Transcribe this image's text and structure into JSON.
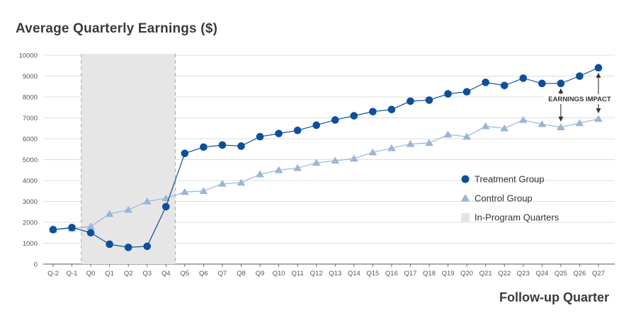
{
  "chart_data": {
    "type": "line",
    "title": "Average Quarterly Earnings ($)",
    "xlabel": "Follow-up Quarter",
    "ylabel": "",
    "ylim": [
      0,
      10000
    ],
    "yticks": [
      0,
      1000,
      2000,
      3000,
      4000,
      5000,
      6000,
      7000,
      8000,
      9000,
      10000
    ],
    "categories": [
      "Q-2",
      "Q-1",
      "Q0",
      "Q1",
      "Q2",
      "Q3",
      "Q4",
      "Q5",
      "Q6",
      "Q7",
      "Q8",
      "Q9",
      "Q10",
      "Q11",
      "Q12",
      "Q13",
      "Q14",
      "Q15",
      "Q16",
      "Q17",
      "Q18",
      "Q19",
      "Q20",
      "Q21",
      "Q22",
      "Q23",
      "Q24",
      "Q25",
      "Q26",
      "Q27"
    ],
    "series": [
      {
        "name": "Treatment Group",
        "marker": "circle",
        "color": "#0d4f9a",
        "values": [
          1650,
          1750,
          1500,
          950,
          800,
          850,
          2750,
          5300,
          5600,
          5700,
          5650,
          6100,
          6250,
          6400,
          6650,
          6900,
          7100,
          7300,
          7400,
          7800,
          7850,
          8150,
          8250,
          8700,
          8550,
          8900,
          8650,
          8650,
          9000,
          9400
        ]
      },
      {
        "name": "Control Group",
        "marker": "triangle",
        "color": "#9bb6d6",
        "values": [
          1650,
          1700,
          1800,
          2400,
          2600,
          3000,
          3150,
          3450,
          3500,
          3850,
          3900,
          4300,
          4500,
          4600,
          4850,
          4950,
          5050,
          5350,
          5550,
          5750,
          5800,
          6200,
          6100,
          6600,
          6500,
          6900,
          6700,
          6550,
          6750,
          6950
        ]
      }
    ],
    "shaded_region": {
      "name": "In-Program Quarters",
      "from": "Q0",
      "to": "Q4",
      "color": "#e6e6e6"
    },
    "annotation": {
      "text": "EARNINGS IMPACT",
      "quarters": [
        "Q25",
        "Q27"
      ]
    },
    "legend_position": "right",
    "grid": true
  }
}
